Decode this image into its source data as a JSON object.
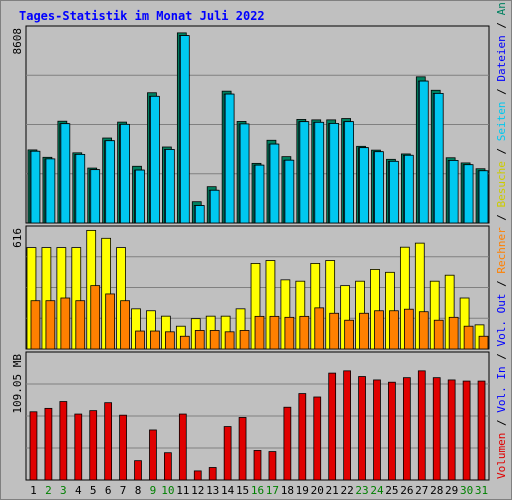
{
  "title": "Tages-Statistik im Monat Juli 2022",
  "colors": {
    "background": "#c0c0c0",
    "plot_background": "#c0c0c0",
    "title": "#0000ff",
    "anfragen": "#008060",
    "dateien": "#00d8f0",
    "seiten": "#00c8f0",
    "besuche": "#ffff00",
    "rechner": "#ff8000",
    "volumen": "#e00000",
    "weekday_tick": "#000000",
    "weekend_tick": "#008000"
  },
  "side_labels": {
    "top": [
      {
        "text": "Anfragen",
        "color": "#008060"
      },
      {
        "text": " / ",
        "color": "#000000"
      },
      {
        "text": "Dateien",
        "color": "#0000ff"
      },
      {
        "text": " / ",
        "color": "#000000"
      },
      {
        "text": "Seiten",
        "color": "#00c8f0"
      },
      {
        "text": " / ",
        "color": "#000000"
      },
      {
        "text": "Besuche",
        "color": "#cccc00"
      },
      {
        "text": " / ",
        "color": "#000000"
      },
      {
        "text": "Rechner",
        "color": "#ff8000"
      },
      {
        "text": " / ",
        "color": "#000000"
      },
      {
        "text": "Vol. Out",
        "color": "#0000ff"
      },
      {
        "text": " / ",
        "color": "#000000"
      },
      {
        "text": "Vol. In",
        "color": "#0000ff"
      },
      {
        "text": " / ",
        "color": "#000000"
      },
      {
        "text": "Volumen",
        "color": "#e00000"
      }
    ]
  },
  "chart_data": [
    {
      "type": "bar",
      "panel": "anfragen-dateien-seiten",
      "ylabel": "8608",
      "ylim": [
        0,
        8608
      ],
      "grid": true,
      "categories": [
        "1",
        "2",
        "3",
        "4",
        "5",
        "6",
        "7",
        "8",
        "9",
        "10",
        "11",
        "12",
        "13",
        "14",
        "15",
        "16",
        "17",
        "18",
        "19",
        "20",
        "21",
        "22",
        "23",
        "24",
        "25",
        "26",
        "27",
        "28",
        "29",
        "30",
        "31"
      ],
      "series": [
        {
          "name": "Anfragen",
          "values": [
            3260,
            2930,
            4540,
            3130,
            2450,
            3790,
            4500,
            2530,
            5810,
            3390,
            8480,
            950,
            1620,
            5880,
            4530,
            2660,
            3690,
            2960,
            4620,
            4600,
            4600,
            4660,
            3420,
            3250,
            2840,
            3080,
            6520,
            5920,
            2910,
            2680,
            2420
          ]
        },
        {
          "name": "Dateien",
          "values": [
            3200,
            2860,
            4430,
            3060,
            2380,
            3670,
            4400,
            2360,
            5650,
            3280,
            8360,
            780,
            1460,
            5750,
            4420,
            2580,
            3520,
            2800,
            4520,
            4490,
            4440,
            4520,
            3360,
            3180,
            2750,
            3020,
            6330,
            5780,
            2790,
            2600,
            2330
          ]
        },
        {
          "name": "Seiten",
          "values": [
            3200,
            2860,
            4430,
            3060,
            2380,
            3670,
            4400,
            2360,
            5650,
            3280,
            8360,
            780,
            1460,
            5750,
            4420,
            2580,
            3520,
            2800,
            4520,
            4490,
            4440,
            4520,
            3360,
            3180,
            2750,
            3020,
            6330,
            5780,
            2790,
            2600,
            2330
          ]
        }
      ]
    },
    {
      "type": "bar",
      "panel": "besuche-rechner",
      "ylabel": "616",
      "ylim": [
        0,
        616
      ],
      "grid": true,
      "categories": [
        "1",
        "2",
        "3",
        "4",
        "5",
        "6",
        "7",
        "8",
        "9",
        "10",
        "11",
        "12",
        "13",
        "14",
        "15",
        "16",
        "17",
        "18",
        "19",
        "20",
        "21",
        "22",
        "23",
        "24",
        "25",
        "26",
        "27",
        "28",
        "29",
        "30",
        "31"
      ],
      "series": [
        {
          "name": "Besuche",
          "values": [
            525,
            525,
            525,
            525,
            614,
            573,
            525,
            208,
            198,
            170,
            118,
            157,
            170,
            170,
            208,
            443,
            458,
            358,
            351,
            443,
            458,
            328,
            351,
            412,
            397,
            527,
            548,
            351,
            382,
            264,
            125
          ]
        },
        {
          "name": "Rechner",
          "values": [
            250,
            250,
            264,
            250,
            328,
            285,
            250,
            93,
            93,
            89,
            66,
            96,
            96,
            89,
            96,
            169,
            169,
            164,
            169,
            213,
            185,
            149,
            185,
            198,
            198,
            206,
            193,
            149,
            164,
            118,
            66
          ]
        }
      ]
    },
    {
      "type": "bar",
      "panel": "volumen",
      "ylabel": "109.05 MB",
      "ylim": [
        0,
        109.05
      ],
      "grid": true,
      "categories": [
        "1",
        "2",
        "3",
        "4",
        "5",
        "6",
        "7",
        "8",
        "9",
        "10",
        "11",
        "12",
        "13",
        "14",
        "15",
        "16",
        "17",
        "18",
        "19",
        "20",
        "21",
        "22",
        "23",
        "24",
        "25",
        "26",
        "27",
        "28",
        "29",
        "30",
        "31"
      ],
      "series": [
        {
          "name": "Volumen",
          "values": [
            60,
            63,
            69,
            58,
            61,
            68,
            57,
            17,
            44,
            24,
            58,
            8,
            11,
            47,
            55,
            26,
            25,
            64,
            76,
            73,
            94,
            96,
            91,
            88,
            86,
            90,
            96,
            90,
            88,
            87,
            87
          ]
        }
      ],
      "weekend_days": [
        "2",
        "3",
        "9",
        "10",
        "16",
        "17",
        "23",
        "24",
        "30",
        "31"
      ]
    }
  ]
}
